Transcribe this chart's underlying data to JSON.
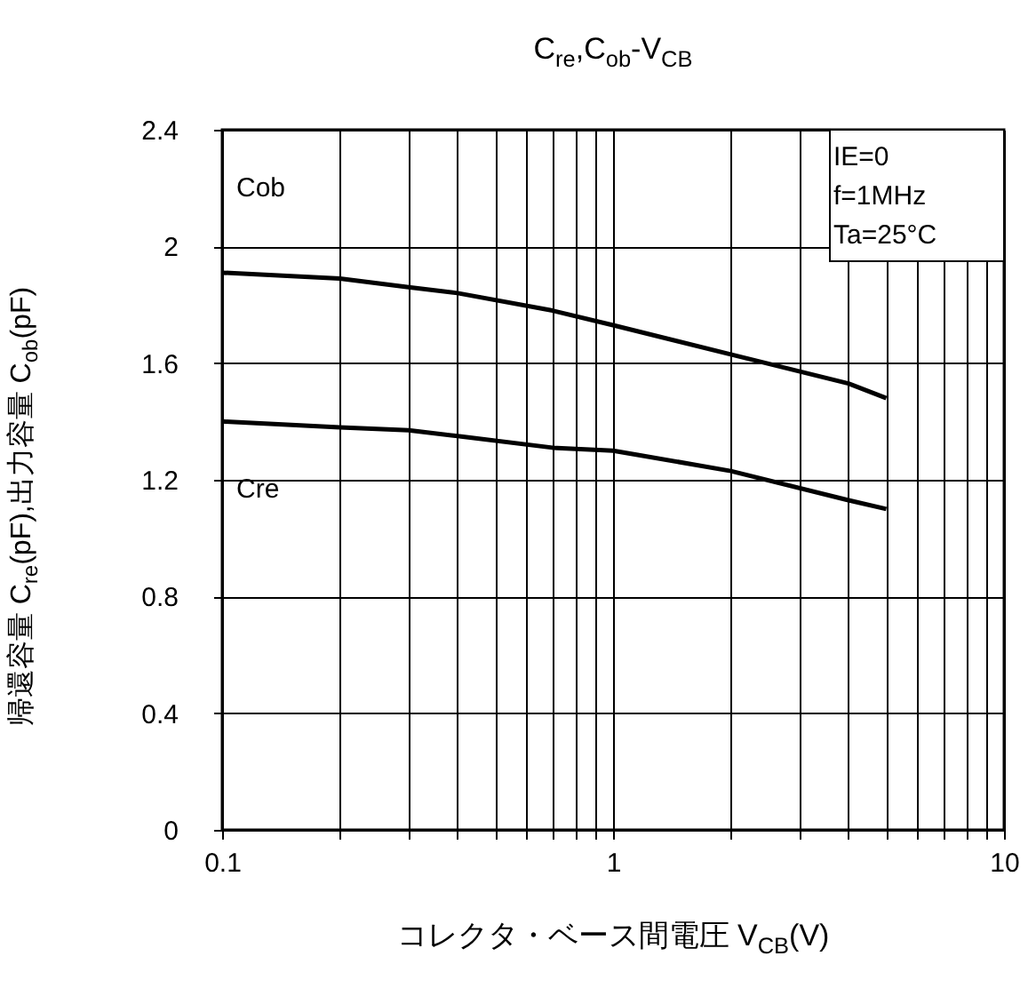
{
  "chart_data": {
    "type": "line",
    "title": "C$_{re}$,C$_{ob}$-V$_{CB}$",
    "xlabel": "コレクタ・ベース間電圧 V$_{CB}$(V)",
    "ylabel": "帰還容量 C$_{re}$(pF),出力容量 C$_{ob}$(pF)",
    "annotations": [
      "IE=0",
      "f=1MHz",
      "Ta=25°C"
    ],
    "x": [
      0.1,
      0.2,
      0.3,
      0.4,
      0.7,
      1,
      2,
      4,
      5
    ],
    "series": [
      {
        "name": "Cob",
        "color": "#000000",
        "values": [
          1.91,
          1.89,
          1.86,
          1.84,
          1.78,
          1.73,
          1.63,
          1.53,
          1.48
        ]
      },
      {
        "name": "Cre",
        "color": "#000000",
        "values": [
          1.4,
          1.38,
          1.37,
          1.35,
          1.31,
          1.3,
          1.23,
          1.13,
          1.1
        ]
      }
    ],
    "log": "x",
    "grid": true,
    "line_style": "solid",
    "xlim": [
      0.1,
      10
    ],
    "xticks": [
      0.1,
      {
        "value": 0.2,
        "label": null
      },
      {
        "value": 0.3,
        "label": null
      },
      {
        "value": 0.4,
        "label": null
      },
      {
        "value": 0.5,
        "label": null
      },
      {
        "value": 0.6,
        "label": null
      },
      {
        "value": 0.7,
        "label": null
      },
      {
        "value": 0.8,
        "label": null
      },
      {
        "value": 0.9,
        "label": null
      },
      1,
      {
        "value": 2,
        "label": null
      },
      {
        "value": 3,
        "label": null
      },
      {
        "value": 4,
        "label": null
      },
      {
        "value": 5,
        "label": null
      },
      {
        "value": 6,
        "label": null
      },
      {
        "value": 7,
        "label": null
      },
      {
        "value": 8,
        "label": null
      },
      {
        "value": 9,
        "label": null
      },
      10
    ],
    "ylim": [
      0,
      2.4
    ],
    "yticks": [
      0,
      0.4,
      0.8,
      1.2,
      1.6,
      2,
      2.4
    ]
  }
}
